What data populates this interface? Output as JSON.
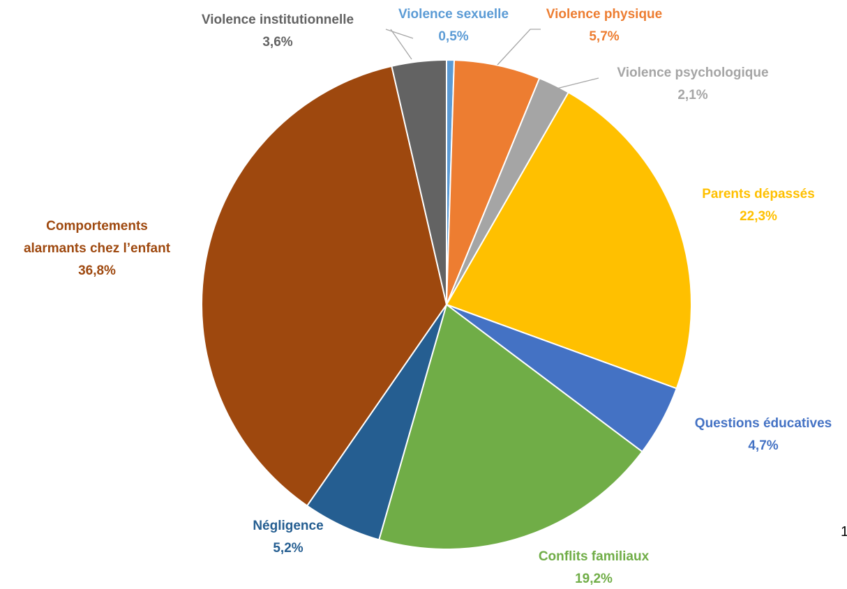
{
  "chart_data": {
    "type": "pie",
    "title": "",
    "slices": [
      {
        "name": "Violence sexuelle",
        "value": 0.5,
        "label": "0,5%",
        "color": "#5B9BD5"
      },
      {
        "name": "Violence physique",
        "value": 5.7,
        "label": "5,7%",
        "color": "#ED7D31"
      },
      {
        "name": "Violence psychologique",
        "value": 2.1,
        "label": "2,1%",
        "color": "#A5A5A5"
      },
      {
        "name": "Parents dépassés",
        "value": 22.3,
        "label": "22,3%",
        "color": "#FFC000"
      },
      {
        "name": "Questions éducatives",
        "value": 4.7,
        "label": "4,7%",
        "color": "#4472C4"
      },
      {
        "name": "Conflits familiaux",
        "value": 19.2,
        "label": "19,2%",
        "color": "#70AD47"
      },
      {
        "name": "Négligence",
        "value": 5.2,
        "label": "5,2%",
        "color": "#255E91"
      },
      {
        "name": "Comportements alarmants chez l’enfant",
        "value": 36.8,
        "label": "36,8%",
        "color": "#9E480E"
      },
      {
        "name": "Violence institutionnelle",
        "value": 3.6,
        "label": "3,6%",
        "color": "#636363"
      }
    ]
  },
  "page_corner_text": "1"
}
